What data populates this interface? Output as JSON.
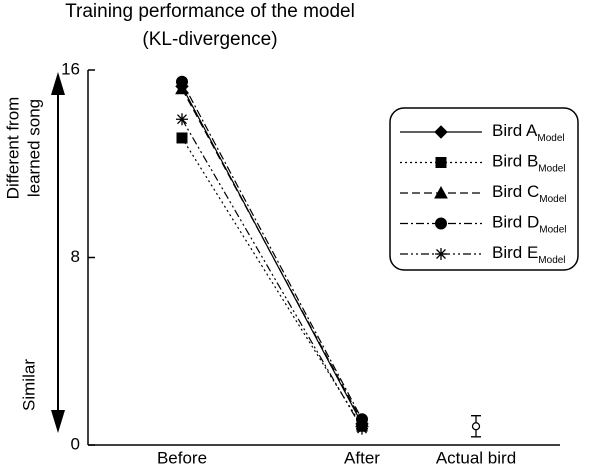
{
  "chart_data": {
    "type": "line",
    "title": "Training performance of the model",
    "subtitle": "(KL-divergence)",
    "ylabel_top": [
      "Different from",
      "learned song"
    ],
    "ylabel_bottom": "Similar",
    "categories": [
      "Before",
      "After",
      "Actual bird"
    ],
    "ylim": [
      0,
      16
    ],
    "yticks": [
      0,
      8,
      16
    ],
    "legend_subscript": "Model",
    "series": [
      {
        "name": "Bird A",
        "color": "#000000",
        "marker": "diamond",
        "dash": "solid",
        "values": [
          15.3,
          0.9,
          null
        ]
      },
      {
        "name": "Bird B",
        "color": "#000000",
        "marker": "square",
        "dash": "dotted",
        "values": [
          13.1,
          0.8,
          null
        ]
      },
      {
        "name": "Bird C",
        "color": "#000000",
        "marker": "triangle",
        "dash": "dashed",
        "values": [
          15.2,
          1.0,
          null
        ]
      },
      {
        "name": "Bird D",
        "color": "#000000",
        "marker": "circle",
        "dash": "dashdot",
        "values": [
          15.5,
          1.1,
          null
        ]
      },
      {
        "name": "Bird E",
        "color": "#000000",
        "marker": "asterisk",
        "dash": "dashdotdot",
        "values": [
          13.9,
          0.7,
          null
        ]
      }
    ],
    "actual_bird": {
      "value": 0.8,
      "error": 0.45
    }
  }
}
